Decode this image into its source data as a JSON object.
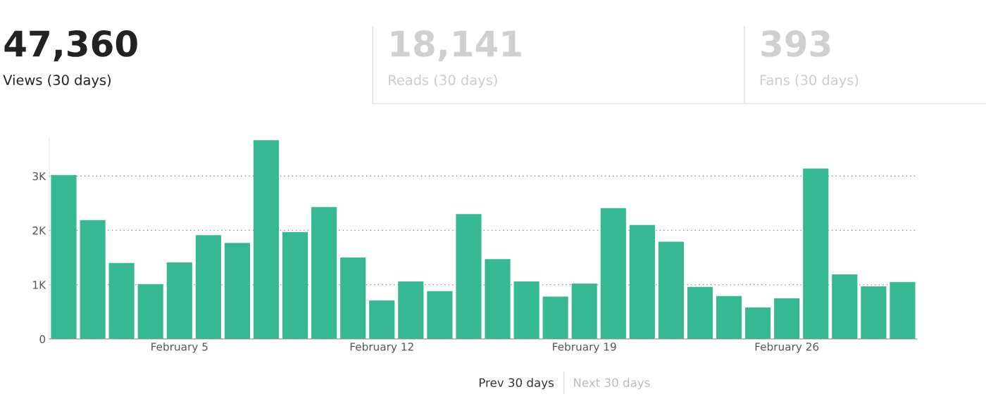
{
  "chart_data": {
    "type": "bar",
    "categories": [
      null,
      null,
      null,
      null,
      "February 5",
      null,
      null,
      null,
      null,
      null,
      null,
      "February 12",
      null,
      null,
      null,
      null,
      null,
      null,
      "February 19",
      null,
      null,
      null,
      null,
      null,
      null,
      "February 26",
      null,
      null,
      null,
      null
    ],
    "values": [
      3020,
      2190,
      1400,
      1010,
      1410,
      1910,
      1770,
      3660,
      1970,
      2430,
      1500,
      710,
      1060,
      880,
      2300,
      1470,
      1060,
      780,
      1020,
      2410,
      2100,
      1790,
      960,
      790,
      580,
      750,
      3140,
      1190,
      970,
      1050
    ],
    "color": "#36b893",
    "ylim": [
      0,
      3700
    ],
    "yticks": [
      0,
      {
        "value": 1000,
        "label": "1K"
      },
      {
        "value": 2000,
        "label": "2K"
      },
      {
        "value": 3000,
        "label": "3K"
      }
    ],
    "grid": "y",
    "annotations": [
      "47,360",
      "Views (30 days)",
      "18,141",
      "Reads (30 days)",
      "393",
      "Fans (30 days)",
      "Prev 30 days",
      "Next 30 days"
    ]
  }
}
